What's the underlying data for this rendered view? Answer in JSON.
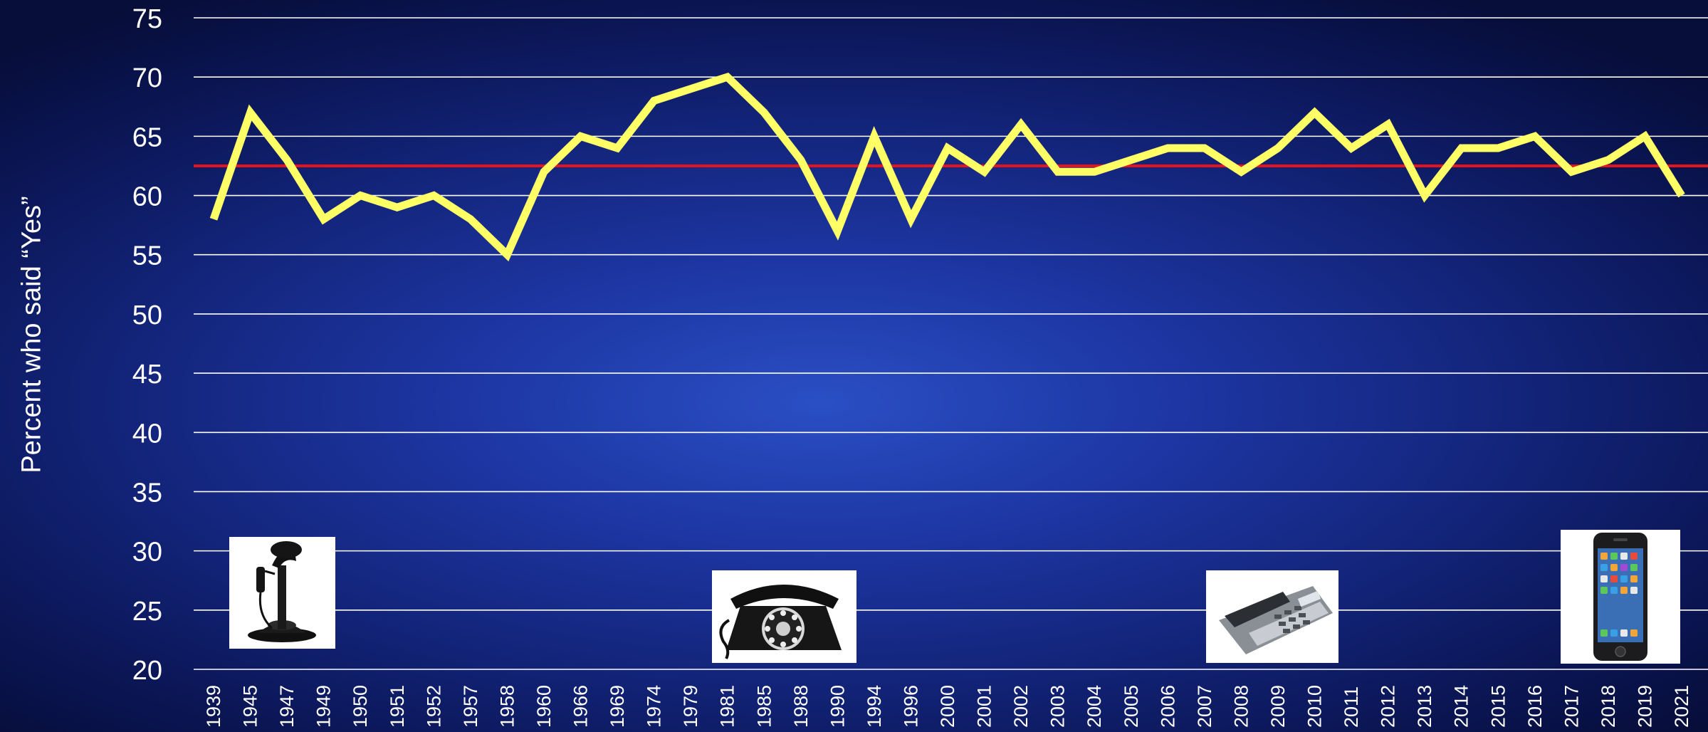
{
  "chart_data": {
    "type": "line",
    "title": "",
    "xlabel": "",
    "ylabel": "Percent who said “Yes”",
    "ylim": [
      20,
      75
    ],
    "yticks": [
      20,
      25,
      30,
      35,
      40,
      45,
      50,
      55,
      60,
      65,
      70,
      75
    ],
    "grid": true,
    "categories": [
      "1939",
      "1945",
      "1947",
      "1949",
      "1950",
      "1951",
      "1952",
      "1957",
      "1958",
      "1960",
      "1966",
      "1969",
      "1974",
      "1979",
      "1981",
      "1985",
      "1988",
      "1990",
      "1994",
      "1996",
      "2000",
      "2001",
      "2002",
      "2003",
      "2004",
      "2005",
      "2006",
      "2007",
      "2008",
      "2009",
      "2010",
      "2011",
      "2012",
      "2013",
      "2014",
      "2015",
      "2016",
      "2017",
      "2018",
      "2019",
      "2021"
    ],
    "series": [
      {
        "color": "#ffff66",
        "values": [
          58,
          67,
          63,
          58,
          60,
          59,
          60,
          58,
          55,
          62,
          65,
          64,
          68,
          69,
          70,
          67,
          63,
          57,
          65,
          58,
          64,
          62,
          66,
          62,
          62,
          63,
          64,
          64,
          62,
          64,
          67,
          64,
          66,
          60,
          64,
          64,
          65,
          62,
          63,
          65,
          60
        ]
      }
    ],
    "reference_lines": [
      {
        "type": "horizontal",
        "value": 62.5,
        "color": "#e8121c"
      }
    ],
    "colors": {
      "grid": "#ffffff",
      "text": "#ffffff"
    },
    "images": [
      "candlestick-phone-icon",
      "rotary-phone-icon",
      "desk-phone-icon",
      "smartphone-icon"
    ]
  }
}
